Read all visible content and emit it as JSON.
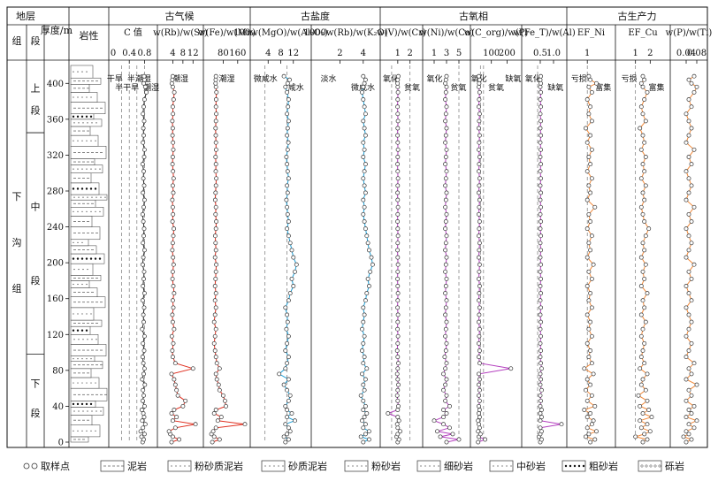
{
  "chart_data": {
    "type": "line",
    "layout": "multi-panel depth profile",
    "y_axis": {
      "label": "厚度/m",
      "lim": [
        0,
        420
      ],
      "ticks": [
        0,
        40,
        80,
        120,
        160,
        200,
        240,
        280,
        320,
        360,
        400
      ],
      "inverted": false
    },
    "headers": {
      "stratum": "地层",
      "group": "组",
      "member": "段",
      "thickness": "厚度/m",
      "lithology": "岩性",
      "cat_climate": "古气候",
      "cat_salinity": "古盐度",
      "cat_redox": "古氧相",
      "cat_productivity": "古生产力"
    },
    "strat": {
      "formation": "下沟组",
      "formation_chars": [
        "下",
        "沟",
        "组"
      ],
      "members": [
        {
          "name": "上段",
          "chars": [
            "上",
            "段"
          ],
          "top": 420,
          "bottom": 345
        },
        {
          "name": "中段",
          "chars": [
            "中",
            "段"
          ],
          "top": 345,
          "bottom": 98
        },
        {
          "name": "下段",
          "chars": [
            "下",
            "段"
          ],
          "top": 98,
          "bottom": 0
        }
      ]
    },
    "depths": [
      0,
      3,
      6,
      9,
      12,
      16,
      20,
      24,
      28,
      32,
      36,
      40,
      46,
      52,
      58,
      64,
      70,
      76,
      82,
      88,
      95,
      102,
      110,
      118,
      126,
      134,
      142,
      150,
      158,
      166,
      174,
      182,
      190,
      198,
      206,
      214,
      222,
      230,
      238,
      246,
      254,
      262,
      270,
      278,
      286,
      294,
      302,
      310,
      318,
      326,
      334,
      342,
      350,
      358,
      366,
      374,
      382,
      390,
      396,
      400,
      404,
      408
    ],
    "panels": [
      {
        "title": "C 值",
        "color": "#222222",
        "xlim": [
          0,
          1.0
        ],
        "ticks": [
          0.4,
          0.8
        ],
        "tick_labels": [
          "0.4",
          "0.8"
        ],
        "extra_tick_label": "0",
        "refs": [
          0.2,
          0.4,
          0.6,
          0.8
        ],
        "annotations": [
          "干旱",
          "半干旱",
          "半潮湿",
          "潮湿"
        ],
        "values": [
          0.75,
          0.78,
          0.72,
          0.8,
          0.7,
          0.76,
          0.82,
          0.74,
          0.79,
          0.77,
          0.73,
          0.8,
          0.75,
          0.78,
          0.76,
          0.81,
          0.74,
          0.78,
          0.8,
          0.77,
          0.75,
          0.79,
          0.76,
          0.8,
          0.74,
          0.78,
          0.77,
          0.79,
          0.75,
          0.8,
          0.76,
          0.78,
          0.79,
          0.75,
          0.77,
          0.8,
          0.76,
          0.78,
          0.79,
          0.77,
          0.75,
          0.78,
          0.8,
          0.76,
          0.79,
          0.77,
          0.78,
          0.75,
          0.79,
          0.8,
          0.76,
          0.78,
          0.77,
          0.79,
          0.76,
          0.78,
          0.8,
          0.85,
          0.82,
          0.78,
          0.8,
          0.79
        ]
      },
      {
        "title": "w(Rb)/w(Sr)",
        "color": "#e03020",
        "xlim": [
          0,
          14
        ],
        "ticks": [
          4,
          8,
          12
        ],
        "tick_labels": [
          "4",
          "8",
          "12"
        ],
        "refs": [],
        "annotations": [
          "潮湿"
        ],
        "values": [
          3.5,
          6.5,
          4.0,
          3.0,
          2.5,
          5.0,
          13.0,
          4.0,
          5.5,
          3.5,
          4.5,
          8.0,
          9.0,
          6.0,
          5.5,
          5.0,
          4.5,
          3.5,
          12.0,
          5.0,
          4.0,
          3.8,
          4.2,
          3.6,
          4.5,
          4.0,
          3.8,
          4.2,
          4.0,
          4.5,
          4.2,
          3.9,
          4.0,
          4.3,
          4.1,
          3.8,
          4.0,
          4.2,
          4.4,
          3.9,
          4.1,
          4.0,
          3.8,
          4.2,
          4.0,
          4.3,
          4.1,
          3.9,
          4.0,
          4.2,
          4.1,
          3.9,
          4.0,
          3.8,
          4.1,
          4.0,
          4.3,
          4.6,
          4.0,
          3.6,
          3.8,
          4.0
        ]
      },
      {
        "title": "w(Fe)/w(Mn)",
        "color": "#e03020",
        "xlim": [
          0,
          200
        ],
        "ticks": [
          80,
          160
        ],
        "tick_labels": [
          "80",
          "160"
        ],
        "refs": [],
        "annotations": [
          "潮湿"
        ],
        "values": [
          20,
          60,
          30,
          15,
          25,
          40,
          200,
          50,
          70,
          30,
          40,
          95,
          90,
          80,
          60,
          55,
          45,
          40,
          60,
          45,
          40,
          35,
          30,
          35,
          40,
          30,
          35,
          40,
          35,
          40,
          35,
          38,
          40,
          42,
          35,
          40,
          38,
          36,
          40,
          42,
          38,
          40,
          36,
          38,
          40,
          42,
          39,
          40,
          38,
          41,
          40,
          39,
          38,
          40,
          42,
          40,
          41,
          43,
          40,
          38,
          39,
          40
        ]
      },
      {
        "title": "100w(MgO)/w(Al₂O₃)",
        "color": "#1ea0d8",
        "xlim": [
          0,
          16
        ],
        "ticks": [
          4,
          8,
          12
        ],
        "tick_labels": [
          "4",
          "8",
          "12"
        ],
        "refs": [
          3,
          10
        ],
        "annotations": [
          "微咸水",
          "咸水"
        ],
        "values": [
          9.5,
          10.5,
          9.0,
          10.0,
          11.0,
          10.5,
          9.5,
          12.5,
          10.0,
          11.5,
          10.0,
          9.5,
          10.5,
          11.0,
          10.0,
          9.0,
          10.5,
          7.5,
          9.5,
          10.0,
          10.5,
          9.5,
          10.0,
          10.5,
          9.8,
          10.2,
          10.0,
          9.5,
          10.5,
          11.0,
          12.0,
          11.5,
          12.5,
          13.0,
          12.0,
          11.5,
          11.0,
          10.5,
          10.0,
          10.5,
          10.2,
          10.0,
          9.8,
          10.2,
          10.0,
          10.5,
          10.2,
          10.0,
          9.8,
          10.2,
          10.4,
          10.0,
          10.2,
          10.5,
          10.0,
          10.3,
          10.5,
          10.0,
          9.5,
          10.2,
          10.8,
          9.0
        ]
      },
      {
        "title": "1000w(Rb)/w(K₂O)",
        "color": "#1ea0d8",
        "xlim": [
          0,
          5
        ],
        "ticks": [
          2,
          4
        ],
        "tick_labels": [
          "2",
          "4"
        ],
        "refs": [],
        "annotations": [
          "淡水",
          "微咸水"
        ],
        "values": [
          4.0,
          4.5,
          3.8,
          4.2,
          4.5,
          4.0,
          4.2,
          3.9,
          4.1,
          4.3,
          4.0,
          4.2,
          4.0,
          3.8,
          4.1,
          4.0,
          4.2,
          3.9,
          4.3,
          4.0,
          4.1,
          3.9,
          4.0,
          4.1,
          3.9,
          4.0,
          4.1,
          4.0,
          4.2,
          4.3,
          4.5,
          4.4,
          4.6,
          4.8,
          4.7,
          4.5,
          4.4,
          4.3,
          4.2,
          4.1,
          4.0,
          4.1,
          4.0,
          4.2,
          4.1,
          4.0,
          4.1,
          4.2,
          4.0,
          4.1,
          4.0,
          4.2,
          4.1,
          4.0,
          4.2,
          4.1,
          4.0,
          3.9,
          4.0,
          4.1,
          4.2,
          4.0
        ]
      },
      {
        "title": "w(V)/w(Cr)",
        "color": "#b43fbf",
        "xlim": [
          0,
          2.6
        ],
        "ticks": [
          1,
          2
        ],
        "tick_labels": [
          "1",
          "2"
        ],
        "refs": [
          0.5,
          2.0
        ],
        "annotations": [
          "氧化",
          "贫氧"
        ],
        "values": [
          1.0,
          1.1,
          0.9,
          1.0,
          1.2,
          1.0,
          0.95,
          1.1,
          1.0,
          0.2,
          1.0,
          1.05,
          1.0,
          0.95,
          1.0,
          1.05,
          1.0,
          0.95,
          1.0,
          1.05,
          1.0,
          0.95,
          1.0,
          1.02,
          0.98,
          1.0,
          1.02,
          0.98,
          1.0,
          1.02,
          1.0,
          0.98,
          1.0,
          1.02,
          1.0,
          0.98,
          1.0,
          1.02,
          1.0,
          0.98,
          1.0,
          1.02,
          1.0,
          0.98,
          1.0,
          1.02,
          1.0,
          0.98,
          1.0,
          1.02,
          1.0,
          0.98,
          1.0,
          1.02,
          1.0,
          0.98,
          1.0,
          1.02,
          1.0,
          0.98,
          1.0,
          1.05
        ]
      },
      {
        "title": "w(Ni)/w(Co)",
        "color": "#b43fbf",
        "xlim": [
          0,
          6
        ],
        "ticks": [
          1,
          3,
          5
        ],
        "tick_labels": [
          "1",
          "3",
          "5"
        ],
        "refs": [
          5
        ],
        "annotations": [
          "氧化",
          "贫氧"
        ],
        "values": [
          3.0,
          5.0,
          2.0,
          4.0,
          1.5,
          3.5,
          2.5,
          1.0,
          2.5,
          3.0,
          2.5,
          3.5,
          2.8,
          3.0,
          2.5,
          2.8,
          3.0,
          2.5,
          2.8,
          3.0,
          2.7,
          2.9,
          3.0,
          2.8,
          2.9,
          3.0,
          2.8,
          2.9,
          3.0,
          2.8,
          2.9,
          3.0,
          2.8,
          2.9,
          3.0,
          2.8,
          2.9,
          3.0,
          2.8,
          2.9,
          3.0,
          2.8,
          2.9,
          3.0,
          2.8,
          2.9,
          3.0,
          2.8,
          2.9,
          3.0,
          2.8,
          2.9,
          3.0,
          2.8,
          2.9,
          3.0,
          2.8,
          2.9,
          3.0,
          2.8,
          2.9,
          3.0
        ]
      },
      {
        "title": "w(C_org)/w(P)",
        "color": "#b43fbf",
        "xlim": [
          0,
          260
        ],
        "ticks": [
          100,
          200
        ],
        "tick_labels": [
          "100",
          "200"
        ],
        "refs": [
          30,
          50
        ],
        "annotations": [
          "氧化",
          "贫氧",
          "缺氧"
        ],
        "values": [
          15,
          60,
          20,
          30,
          15,
          25,
          20,
          15,
          25,
          20,
          25,
          20,
          25,
          20,
          25,
          20,
          25,
          20,
          225,
          25,
          20,
          25,
          20,
          22,
          25,
          20,
          22,
          25,
          20,
          22,
          25,
          20,
          22,
          25,
          20,
          22,
          25,
          20,
          22,
          25,
          20,
          22,
          25,
          20,
          22,
          25,
          20,
          22,
          25,
          20,
          22,
          25,
          20,
          22,
          25,
          20,
          22,
          25,
          20,
          22,
          25,
          20
        ]
      },
      {
        "title": "w(Fe_T)/w(Al)",
        "color": "#b43fbf",
        "xlim": [
          0,
          1.3
        ],
        "ticks": [
          0.5,
          1.0
        ],
        "tick_labels": [
          "0.5",
          "1.0"
        ],
        "refs": [
          0.4
        ],
        "annotations": [
          "氧化",
          "缺氧"
        ],
        "values": [
          0.5,
          0.55,
          0.45,
          0.5,
          0.55,
          0.5,
          1.3,
          0.5,
          0.55,
          0.5,
          0.55,
          0.5,
          0.52,
          0.5,
          0.55,
          0.5,
          0.52,
          0.5,
          0.55,
          0.52,
          0.5,
          0.52,
          0.5,
          0.52,
          0.5,
          0.52,
          0.5,
          0.52,
          0.5,
          0.52,
          0.5,
          0.52,
          0.5,
          0.52,
          0.5,
          0.52,
          0.5,
          0.52,
          0.5,
          0.52,
          0.5,
          0.52,
          0.5,
          0.52,
          0.5,
          0.52,
          0.5,
          0.52,
          0.5,
          0.52,
          0.5,
          0.52,
          0.5,
          0.52,
          0.5,
          0.52,
          0.5,
          0.52,
          0.5,
          0.52,
          0.5,
          0.52
        ]
      },
      {
        "title": "EF_Ni",
        "color": "#f28a3a",
        "xlim": [
          0,
          2.5
        ],
        "ticks": [
          1
        ],
        "tick_labels": [
          "1"
        ],
        "refs": [
          1
        ],
        "annotations": [
          "亏损",
          "富集"
        ],
        "values": [
          1.2,
          1.5,
          0.9,
          1.1,
          1.6,
          1.0,
          1.3,
          1.4,
          1.0,
          1.2,
          0.8,
          1.5,
          1.0,
          1.3,
          0.9,
          1.2,
          1.0,
          1.4,
          0.8,
          1.3,
          1.1,
          1.2,
          1.0,
          1.3,
          1.1,
          1.2,
          1.0,
          1.3,
          1.1,
          1.2,
          1.0,
          1.3,
          1.1,
          1.4,
          1.0,
          1.2,
          1.1,
          1.3,
          1.0,
          1.2,
          1.1,
          1.5,
          1.0,
          1.2,
          1.1,
          1.3,
          1.0,
          1.2,
          1.1,
          1.3,
          1.0,
          1.2,
          0.9,
          1.3,
          1.1,
          1.2,
          1.0,
          1.3,
          1.1,
          1.6,
          1.2,
          1.1
        ]
      },
      {
        "title": "EF_Cu",
        "color": "#f28a3a",
        "xlim": [
          0,
          3.0
        ],
        "ticks": [
          1,
          2
        ],
        "tick_labels": [
          "1",
          "2"
        ],
        "refs": [
          1
        ],
        "annotations": [
          "亏损",
          "富集"
        ],
        "values": [
          1.5,
          1.8,
          1.0,
          1.6,
          2.0,
          1.4,
          1.8,
          1.3,
          2.1,
          1.5,
          1.9,
          1.3,
          1.8,
          1.2,
          1.7,
          1.4,
          1.5,
          1.8,
          1.3,
          1.6,
          1.4,
          1.5,
          1.6,
          1.4,
          1.5,
          1.7,
          1.4,
          1.6,
          1.5,
          1.8,
          1.4,
          1.6,
          1.5,
          1.7,
          1.4,
          1.6,
          1.5,
          1.7,
          1.9,
          1.6,
          1.5,
          1.4,
          1.6,
          1.5,
          1.7,
          1.4,
          1.6,
          1.5,
          1.7,
          1.4,
          1.6,
          1.5,
          1.3,
          1.7,
          1.5,
          1.4,
          1.6,
          1.8,
          1.5,
          1.4,
          1.6,
          1.5
        ]
      },
      {
        "title": "w(P)/w(Ti)",
        "color": "#f28a3a",
        "xlim": [
          0,
          0.1
        ],
        "ticks": [
          0.04,
          0.08
        ],
        "tick_labels": [
          "0.04",
          "0.08"
        ],
        "refs": [],
        "annotations": [],
        "values": [
          0.04,
          0.06,
          0.03,
          0.05,
          0.04,
          0.07,
          0.05,
          0.08,
          0.04,
          0.06,
          0.05,
          0.07,
          0.04,
          0.06,
          0.05,
          0.08,
          0.04,
          0.06,
          0.05,
          0.07,
          0.04,
          0.05,
          0.06,
          0.04,
          0.05,
          0.06,
          0.05,
          0.04,
          0.06,
          0.05,
          0.04,
          0.06,
          0.05,
          0.07,
          0.04,
          0.05,
          0.06,
          0.05,
          0.04,
          0.06,
          0.05,
          0.07,
          0.04,
          0.05,
          0.06,
          0.05,
          0.04,
          0.06,
          0.05,
          0.07,
          0.04,
          0.05,
          0.06,
          0.05,
          0.04,
          0.06,
          0.05,
          0.07,
          0.08,
          0.06,
          0.05,
          0.07
        ]
      }
    ],
    "legend": [
      {
        "key": "sample",
        "label": "取样点"
      },
      {
        "key": "mudstone",
        "label": "泥岩"
      },
      {
        "key": "silty_mudstone",
        "label": "粉砂质泥岩"
      },
      {
        "key": "sandy_mudstone",
        "label": "砂质泥岩"
      },
      {
        "key": "siltstone",
        "label": "粉砂岩"
      },
      {
        "key": "fine_sandstone",
        "label": "细砂岩"
      },
      {
        "key": "medium_sandstone",
        "label": "中砂岩"
      },
      {
        "key": "coarse_sandstone",
        "label": "粗砂岩"
      },
      {
        "key": "conglomerate",
        "label": "砾岩"
      }
    ]
  }
}
